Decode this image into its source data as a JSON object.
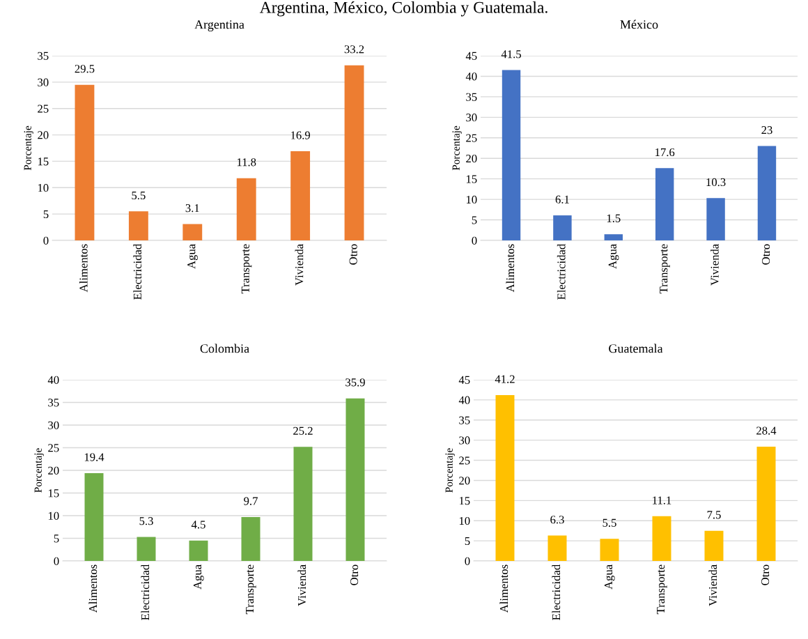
{
  "chart_data": [
    {
      "type": "bar",
      "title": "Argentina",
      "annotations": [
        "Argentina, México, Colombia y Guatemala."
      ],
      "ylabel": "Porcentaje",
      "categories": [
        "Alimentos",
        "Electricidad",
        "Agua",
        "Transporte",
        "Vivienda",
        "Otro"
      ],
      "values": [
        29.5,
        5.5,
        3.1,
        11.8,
        16.9,
        33.2
      ],
      "color": "#ed7d31",
      "ylim": [
        0,
        35
      ],
      "yticks": [
        0,
        5,
        10,
        15,
        20,
        25,
        30,
        35
      ],
      "grid": "y",
      "data_labels": true
    },
    {
      "type": "bar",
      "title": "México",
      "ylabel": "Porcentaje",
      "categories": [
        "Alimentos",
        "Electricidad",
        "Agua",
        "Transporte",
        "Vivienda",
        "Otro"
      ],
      "values": [
        41.5,
        6.1,
        1.5,
        17.6,
        10.3,
        23
      ],
      "color": "#4472c4",
      "ylim": [
        0,
        45
      ],
      "yticks": [
        0,
        5,
        10,
        15,
        20,
        25,
        30,
        35,
        40,
        45
      ],
      "grid": "y",
      "data_labels": true
    },
    {
      "type": "bar",
      "title": "Colombia",
      "ylabel": "Porcentaje",
      "categories": [
        "Alimentos",
        "Electricidad",
        "Agua",
        "Transporte",
        "Vivienda",
        "Otro"
      ],
      "values": [
        19.4,
        5.3,
        4.5,
        9.7,
        25.2,
        35.9
      ],
      "color": "#70ad47",
      "ylim": [
        0,
        40
      ],
      "yticks": [
        0,
        5,
        10,
        15,
        20,
        25,
        30,
        35,
        40
      ],
      "grid": "y",
      "data_labels": true
    },
    {
      "type": "bar",
      "title": "Guatemala",
      "ylabel": "Porcentaje",
      "categories": [
        "Alimentos",
        "Electricidad",
        "Agua",
        "Transporte",
        "Vivienda",
        "Otro"
      ],
      "values": [
        41.2,
        6.3,
        5.5,
        11.1,
        7.5,
        28.4
      ],
      "color": "#ffc000",
      "ylim": [
        0,
        45
      ],
      "yticks": [
        0,
        5,
        10,
        15,
        20,
        25,
        30,
        35,
        40,
        45
      ],
      "grid": "y",
      "data_labels": true
    }
  ]
}
